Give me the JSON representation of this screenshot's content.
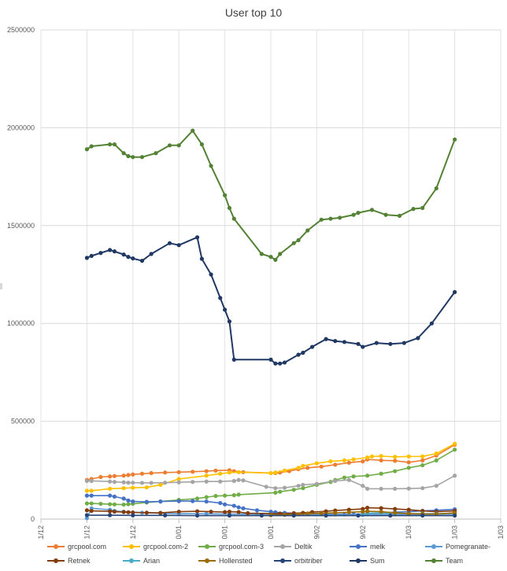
{
  "chart_data": {
    "type": "line",
    "title": "User top 10",
    "xlabel": "",
    "ylabel": "",
    "ylim": [
      0,
      2500000
    ],
    "y_ticks": [
      0,
      500000,
      1000000,
      1500000,
      2000000,
      2500000
    ],
    "y_tick_labels": [
      "0",
      "500000",
      "1000000",
      "1500000",
      "2000000",
      "2500000"
    ],
    "xlim": [
      "2017-12-11",
      "2018-03-21"
    ],
    "x_ticks": [
      "2017-12-11",
      "2017-12-21",
      "2017-12-31",
      "2018-01-10",
      "2018-01-20",
      "2018-01-30",
      "2018-02-09",
      "2018-02-19",
      "2018-03-01",
      "2018-03-11",
      "2018-03-21"
    ],
    "x_tick_labels": [
      "11/12",
      "21/12",
      "31/12",
      "10/01",
      "20/01",
      "30/01",
      "09/02",
      "19/02",
      "01/03",
      "11/03",
      "21/03"
    ],
    "grid": "horizontal",
    "legend_position": "bottom",
    "series": [
      {
        "name": "grcpool.com",
        "color": "#ed7d31",
        "x": [
          "2017-12-21",
          "2017-12-22",
          "2017-12-24",
          "2017-12-26",
          "2017-12-27",
          "2017-12-29",
          "2017-12-30",
          "2017-12-31",
          "2018-01-02",
          "2018-01-04",
          "2018-01-07",
          "2018-01-10",
          "2018-01-13",
          "2018-01-16",
          "2018-01-18",
          "2018-01-21",
          "2018-01-22",
          "2018-01-24",
          "2018-01-31",
          "2018-02-01",
          "2018-02-03",
          "2018-02-05",
          "2018-02-07",
          "2018-02-10",
          "2018-02-13",
          "2018-02-16",
          "2018-02-19",
          "2018-02-20",
          "2018-02-23",
          "2018-02-26",
          "2018-03-01",
          "2018-03-04",
          "2018-03-07",
          "2018-03-11"
        ],
        "y": [
          200000,
          205000,
          215000,
          218000,
          220000,
          222000,
          225000,
          228000,
          232000,
          235000,
          238000,
          240000,
          242000,
          245000,
          248000,
          250000,
          245000,
          240000,
          235000,
          238000,
          245000,
          255000,
          262000,
          268000,
          278000,
          288000,
          295000,
          305000,
          300000,
          298000,
          290000,
          300000,
          325000,
          380000
        ]
      },
      {
        "name": "grcpool.com-2",
        "color": "#ffc000",
        "x": [
          "2017-12-21",
          "2017-12-22",
          "2017-12-26",
          "2017-12-29",
          "2017-12-31",
          "2018-01-03",
          "2018-01-06",
          "2018-01-10",
          "2018-01-16",
          "2018-01-19",
          "2018-01-21",
          "2018-01-23",
          "2018-01-30",
          "2018-01-31",
          "2018-02-02",
          "2018-02-05",
          "2018-02-06",
          "2018-02-09",
          "2018-02-12",
          "2018-02-15",
          "2018-02-17",
          "2018-02-20",
          "2018-02-21",
          "2018-02-23",
          "2018-02-26",
          "2018-03-01",
          "2018-03-04",
          "2018-03-07",
          "2018-03-11"
        ],
        "y": [
          145000,
          145000,
          155000,
          158000,
          160000,
          162000,
          175000,
          205000,
          222000,
          232000,
          238000,
          240000,
          235000,
          238000,
          248000,
          262000,
          272000,
          285000,
          295000,
          300000,
          305000,
          315000,
          320000,
          322000,
          318000,
          320000,
          320000,
          335000,
          385000
        ]
      },
      {
        "name": "grcpool.com-3",
        "color": "#70ad47",
        "x": [
          "2017-12-21",
          "2017-12-22",
          "2017-12-24",
          "2017-12-26",
          "2017-12-27",
          "2017-12-29",
          "2017-12-30",
          "2017-12-31",
          "2018-01-03",
          "2018-01-06",
          "2018-01-10",
          "2018-01-14",
          "2018-01-16",
          "2018-01-18",
          "2018-01-20",
          "2018-01-22",
          "2018-01-23",
          "2018-01-31",
          "2018-02-01",
          "2018-02-04",
          "2018-02-06",
          "2018-02-09",
          "2018-02-12",
          "2018-02-13",
          "2018-02-15",
          "2018-02-17",
          "2018-02-20",
          "2018-02-23",
          "2018-02-26",
          "2018-03-01",
          "2018-03-04",
          "2018-03-07",
          "2018-03-11"
        ],
        "y": [
          80000,
          80000,
          78000,
          76000,
          75000,
          74000,
          76000,
          78000,
          85000,
          90000,
          98000,
          105000,
          112000,
          118000,
          120000,
          122000,
          125000,
          135000,
          140000,
          150000,
          158000,
          175000,
          190000,
          200000,
          212000,
          218000,
          222000,
          232000,
          245000,
          262000,
          275000,
          300000,
          355000
        ]
      },
      {
        "name": "Deltik",
        "color": "#a5a5a5",
        "x": [
          "2017-12-21",
          "2017-12-22",
          "2017-12-26",
          "2017-12-27",
          "2017-12-29",
          "2017-12-30",
          "2017-12-31",
          "2018-01-02",
          "2018-01-04",
          "2018-01-07",
          "2018-01-10",
          "2018-01-13",
          "2018-01-16",
          "2018-01-19",
          "2018-01-22",
          "2018-01-23",
          "2018-01-24",
          "2018-01-29",
          "2018-01-31",
          "2018-02-02",
          "2018-02-05",
          "2018-02-06",
          "2018-02-09",
          "2018-02-13",
          "2018-02-16",
          "2018-02-19",
          "2018-02-20",
          "2018-02-23",
          "2018-02-26",
          "2018-03-01",
          "2018-03-04",
          "2018-03-07",
          "2018-03-11"
        ],
        "y": [
          195000,
          195000,
          192000,
          190000,
          188000,
          186000,
          186000,
          185000,
          185000,
          186000,
          188000,
          190000,
          192000,
          192000,
          195000,
          200000,
          198000,
          165000,
          158000,
          160000,
          170000,
          175000,
          180000,
          195000,
          200000,
          170000,
          155000,
          155000,
          155000,
          156000,
          158000,
          170000,
          222000
        ]
      },
      {
        "name": "melk",
        "color": "#4472c4",
        "x": [
          "2017-12-21",
          "2017-12-22",
          "2017-12-26",
          "2017-12-27",
          "2017-12-29",
          "2017-12-30",
          "2017-12-31",
          "2018-01-03",
          "2018-01-06",
          "2018-01-10",
          "2018-01-13",
          "2018-01-16",
          "2018-01-19",
          "2018-01-20",
          "2018-01-22",
          "2018-01-23",
          "2018-01-24",
          "2018-01-27",
          "2018-01-30",
          "2018-01-31",
          "2018-02-02",
          "2018-02-04",
          "2018-02-07",
          "2018-02-10",
          "2018-02-13",
          "2018-02-15",
          "2018-02-17",
          "2018-02-20",
          "2018-02-23",
          "2018-02-26",
          "2018-03-01",
          "2018-03-04",
          "2018-03-07",
          "2018-03-11"
        ],
        "y": [
          120000,
          120000,
          120000,
          115000,
          105000,
          95000,
          90000,
          88000,
          90000,
          92000,
          92000,
          90000,
          82000,
          75000,
          68000,
          60000,
          55000,
          45000,
          38000,
          35000,
          32000,
          30000,
          28000,
          25000,
          24000,
          24000,
          25000,
          28000,
          32000,
          35000,
          38000,
          42000,
          45000,
          50000
        ]
      },
      {
        "name": "Pomegranate-",
        "color": "#5b9bd5",
        "x": [
          "2017-12-21",
          "2017-12-22",
          "2017-12-26",
          "2017-12-27",
          "2017-12-29",
          "2018-01-02",
          "2018-01-06",
          "2018-01-10",
          "2018-01-16",
          "2018-01-21",
          "2018-01-27",
          "2018-02-04",
          "2018-02-12",
          "2018-02-19",
          "2018-02-20",
          "2018-02-26",
          "2018-03-04",
          "2018-03-11"
        ],
        "y": [
          5000,
          55000,
          48000,
          42000,
          38000,
          33000,
          30000,
          28000,
          27000,
          26000,
          25000,
          24000,
          24000,
          25000,
          25000,
          24000,
          24000,
          26000
        ]
      },
      {
        "name": "Retnek",
        "color": "#843c0c",
        "x": [
          "2017-12-21",
          "2017-12-22",
          "2017-12-26",
          "2017-12-27",
          "2017-12-29",
          "2017-12-30",
          "2017-12-31",
          "2018-01-03",
          "2018-01-06",
          "2018-01-10",
          "2018-01-14",
          "2018-01-17",
          "2018-01-20",
          "2018-01-21",
          "2018-01-23",
          "2018-01-25",
          "2018-02-01",
          "2018-02-04",
          "2018-02-06",
          "2018-02-08",
          "2018-02-11",
          "2018-02-13",
          "2018-02-16",
          "2018-02-19",
          "2018-02-20",
          "2018-02-23",
          "2018-02-26",
          "2018-03-01",
          "2018-03-04",
          "2018-03-07",
          "2018-03-11"
        ],
        "y": [
          45000,
          42000,
          40000,
          38000,
          36000,
          35000,
          34000,
          33000,
          32000,
          38000,
          40000,
          38000,
          36000,
          38000,
          36000,
          30000,
          28000,
          30000,
          32000,
          36000,
          40000,
          44000,
          48000,
          52000,
          58000,
          56000,
          52000,
          48000,
          42000,
          38000,
          42000
        ]
      },
      {
        "name": "Arian",
        "color": "#4bacc6",
        "x": [
          "2018-02-19",
          "2018-02-20",
          "2018-02-23",
          "2018-02-26",
          "2018-03-01",
          "2018-03-04",
          "2018-03-07",
          "2018-03-11"
        ],
        "y": [
          22000,
          30000,
          32000,
          30000,
          28000,
          28000,
          28000,
          30000
        ]
      },
      {
        "name": "Hollensted",
        "color": "#9c6b08",
        "x": [
          "2018-01-30",
          "2018-02-02",
          "2018-02-05",
          "2018-02-07",
          "2018-02-10",
          "2018-02-13",
          "2018-02-16",
          "2018-02-19",
          "2018-02-20",
          "2018-02-23",
          "2018-02-26",
          "2018-03-01",
          "2018-03-04",
          "2018-03-07",
          "2018-03-11"
        ],
        "y": [
          20000,
          22000,
          25000,
          28000,
          30000,
          32000,
          35000,
          38000,
          40000,
          38000,
          32000,
          28000,
          26000,
          26000,
          32000
        ]
      },
      {
        "name": "orbitriber",
        "color": "#264478",
        "x": [
          "2017-12-21",
          "2017-12-26",
          "2017-12-31",
          "2018-01-07",
          "2018-01-14",
          "2018-01-21",
          "2018-01-28",
          "2018-02-04",
          "2018-02-11",
          "2018-02-18",
          "2018-02-25",
          "2018-03-04",
          "2018-03-11"
        ],
        "y": [
          20000,
          20000,
          19000,
          19000,
          18000,
          18000,
          18000,
          18000,
          18000,
          18000,
          18000,
          18000,
          18000
        ]
      },
      {
        "name": "Sum",
        "color": "#203864",
        "x": [
          "2017-12-21",
          "2017-12-22",
          "2017-12-24",
          "2017-12-26",
          "2017-12-27",
          "2017-12-29",
          "2017-12-30",
          "2017-12-31",
          "2018-01-02",
          "2018-01-04",
          "2018-01-08",
          "2018-01-10",
          "2018-01-14",
          "2018-01-15",
          "2018-01-17",
          "2018-01-19",
          "2018-01-20",
          "2018-01-21",
          "2018-01-22",
          "2018-01-30",
          "2018-01-31",
          "2018-02-01",
          "2018-02-02",
          "2018-02-05",
          "2018-02-06",
          "2018-02-08",
          "2018-02-11",
          "2018-02-13",
          "2018-02-15",
          "2018-02-18",
          "2018-02-19",
          "2018-02-22",
          "2018-02-25",
          "2018-02-28",
          "2018-03-03",
          "2018-03-06",
          "2018-03-11"
        ],
        "y": [
          1335000,
          1345000,
          1360000,
          1375000,
          1368000,
          1352000,
          1340000,
          1332000,
          1320000,
          1355000,
          1410000,
          1400000,
          1440000,
          1330000,
          1250000,
          1130000,
          1070000,
          1010000,
          815000,
          815000,
          795000,
          795000,
          800000,
          840000,
          850000,
          880000,
          920000,
          910000,
          905000,
          895000,
          880000,
          900000,
          895000,
          900000,
          925000,
          1000000,
          1160000
        ]
      },
      {
        "name": "Team",
        "color": "#548235",
        "x": [
          "2017-12-21",
          "2017-12-22",
          "2017-12-26",
          "2017-12-27",
          "2017-12-29",
          "2017-12-30",
          "2017-12-31",
          "2018-01-02",
          "2018-01-05",
          "2018-01-08",
          "2018-01-10",
          "2018-01-13",
          "2018-01-15",
          "2018-01-17",
          "2018-01-20",
          "2018-01-21",
          "2018-01-22",
          "2018-01-28",
          "2018-01-30",
          "2018-01-31",
          "2018-02-01",
          "2018-02-04",
          "2018-02-05",
          "2018-02-07",
          "2018-02-10",
          "2018-02-12",
          "2018-02-14",
          "2018-02-17",
          "2018-02-18",
          "2018-02-21",
          "2018-02-24",
          "2018-02-27",
          "2018-03-02",
          "2018-03-04",
          "2018-03-07",
          "2018-03-11"
        ],
        "y": [
          1890000,
          1905000,
          1915000,
          1915000,
          1870000,
          1855000,
          1850000,
          1850000,
          1870000,
          1910000,
          1910000,
          1985000,
          1915000,
          1805000,
          1655000,
          1590000,
          1535000,
          1355000,
          1340000,
          1325000,
          1355000,
          1410000,
          1425000,
          1475000,
          1530000,
          1535000,
          1540000,
          1555000,
          1565000,
          1580000,
          1555000,
          1550000,
          1585000,
          1590000,
          1690000,
          1940000
        ]
      }
    ]
  }
}
